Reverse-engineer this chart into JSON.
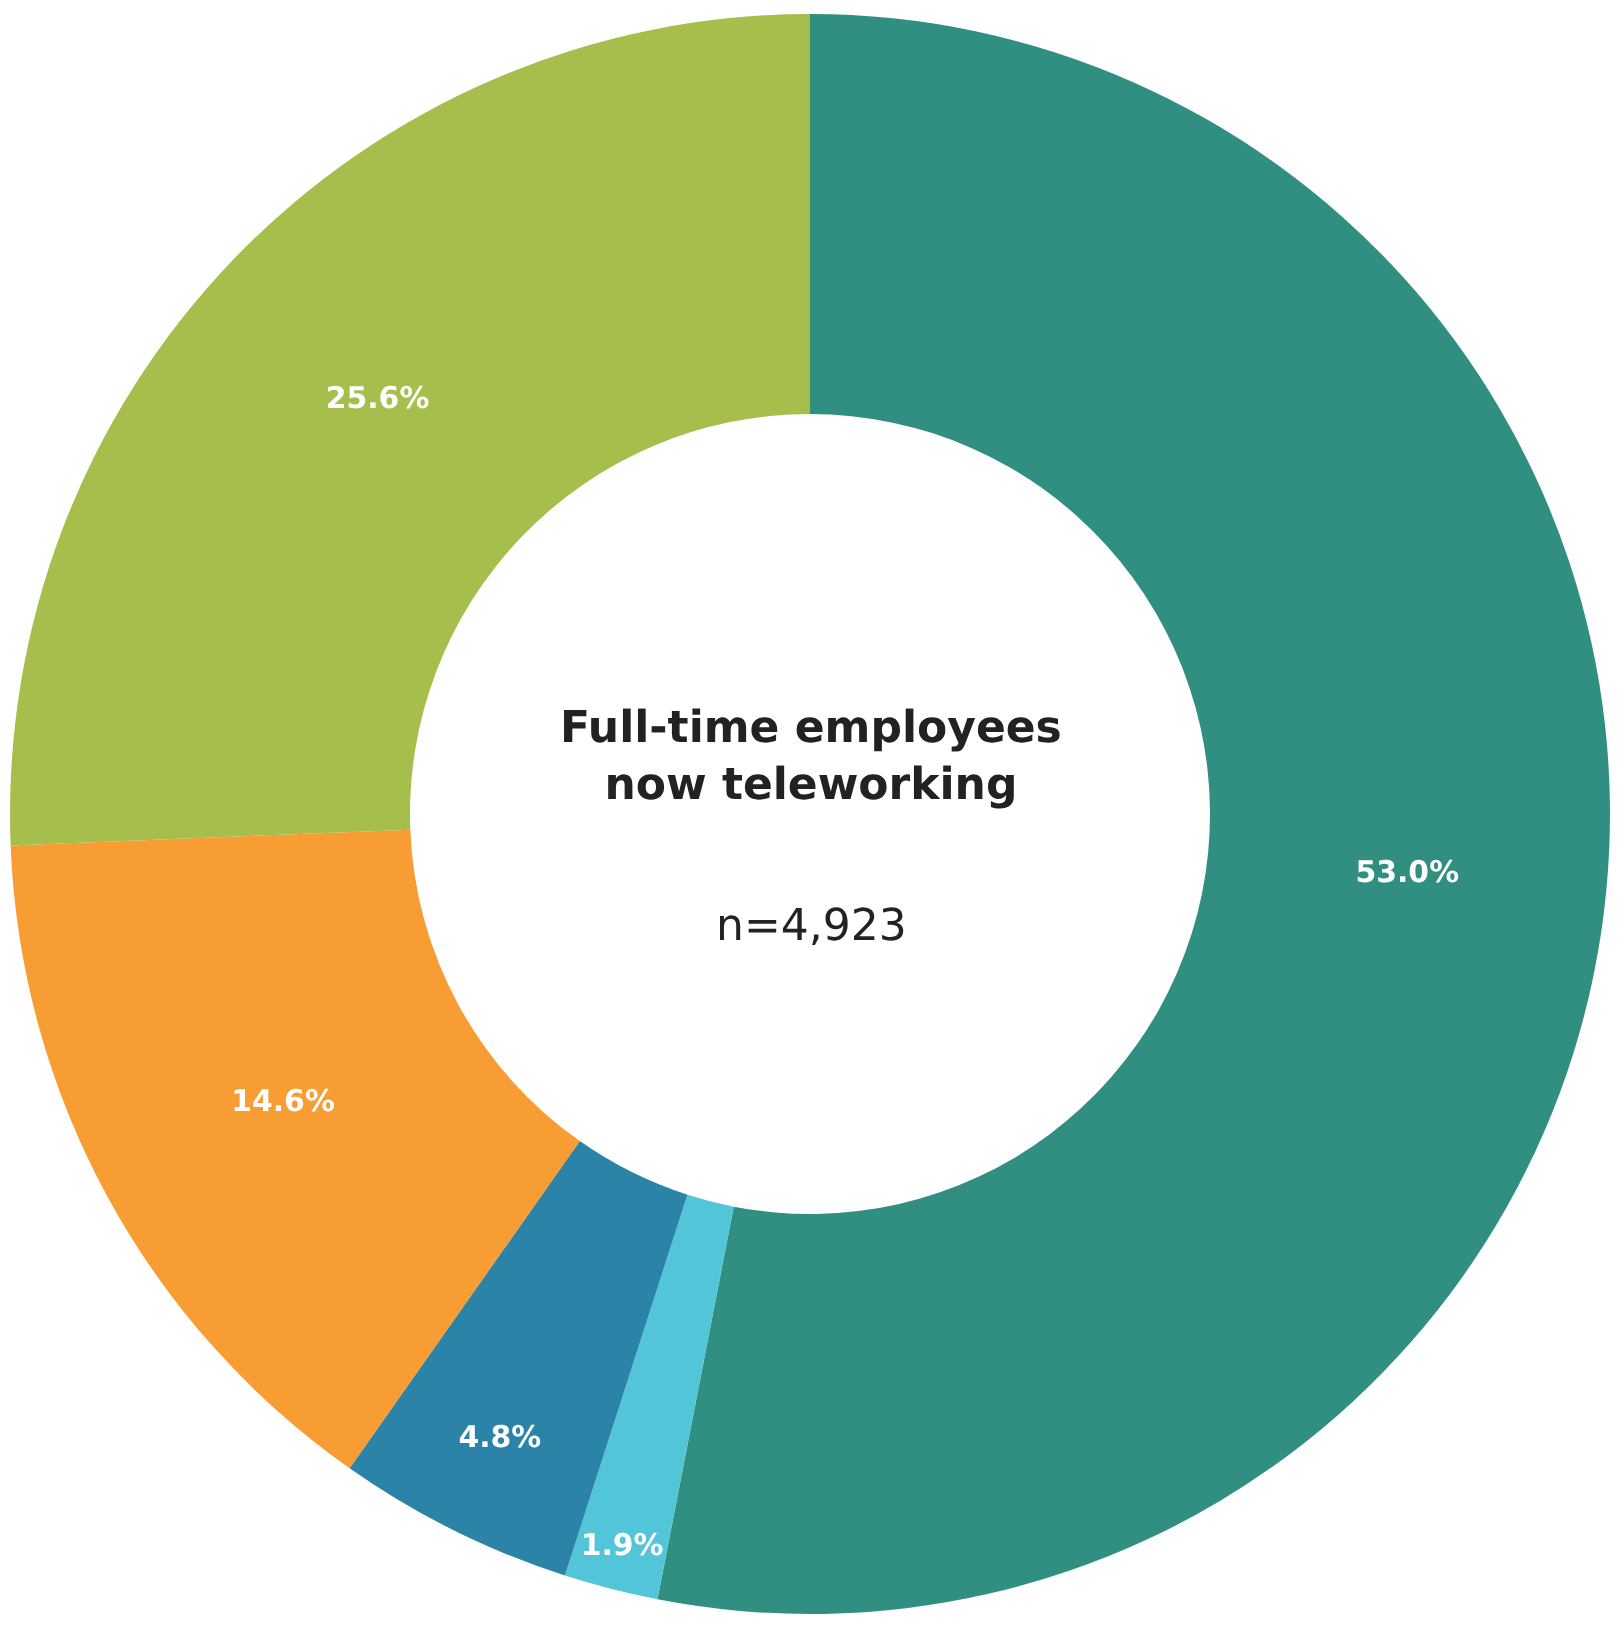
{
  "chart_data": {
    "type": "donut",
    "title": "Full-time employees now teleworking",
    "subtitle": "n=4,923",
    "categories": [
      null,
      null,
      null,
      null,
      null
    ],
    "values": [
      53.0,
      1.9,
      4.8,
      14.6,
      25.6
    ],
    "value_labels": [
      "53.0%",
      "1.9%",
      "4.8%",
      "14.6%",
      "25.6%"
    ],
    "colors": [
      "#318f82",
      "#52c5d8",
      "#2b83a8",
      "#f89c34",
      "#a6be4b"
    ],
    "legend": false
  }
}
